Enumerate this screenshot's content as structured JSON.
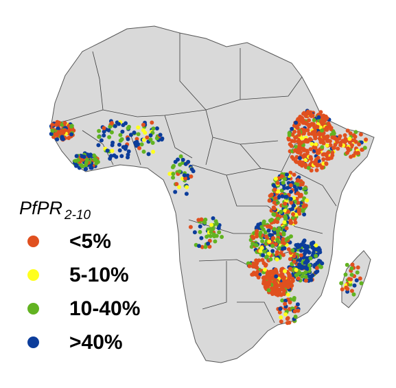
{
  "legend": {
    "title_main": "PfPR",
    "title_sub": "2-10",
    "items": [
      {
        "label": "<5%",
        "color": "#e0501f"
      },
      {
        "label": "5-10%",
        "color": "#ffff1e"
      },
      {
        "label": "10-40%",
        "color": "#62b321"
      },
      {
        "label": ">40%",
        "color": "#0c3d9b"
      }
    ]
  },
  "colors": {
    "land": "#d9d9d9",
    "border": "#3a3a3a",
    "background": "#ffffff"
  }
}
